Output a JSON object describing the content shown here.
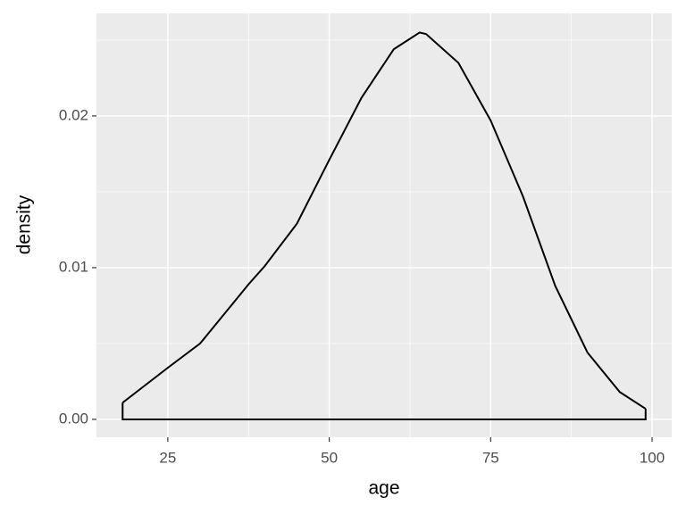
{
  "chart_data": {
    "type": "density",
    "x_label": "age",
    "y_label": "density",
    "x": [
      18,
      25,
      30,
      37.5,
      40,
      45,
      50,
      55,
      60,
      64,
      65,
      70,
      75,
      80,
      85,
      90,
      95,
      99
    ],
    "values": [
      0.0011,
      0.0034,
      0.005,
      0.0089,
      0.0101,
      0.0129,
      0.0171,
      0.0212,
      0.0244,
      0.0255,
      0.0254,
      0.0235,
      0.0197,
      0.0147,
      0.0088,
      0.0044,
      0.0018,
      0.0007
    ],
    "color": "#000000",
    "xlim": [
      13.95,
      103.04
    ],
    "ylim": [
      -0.00118,
      0.02676
    ],
    "xticks": [
      25,
      50,
      75,
      100
    ],
    "yticks": [
      {
        "value": 0,
        "label": "0.00"
      },
      {
        "value": 0.01,
        "label": "0.01"
      },
      {
        "value": 0.02,
        "label": "0.02"
      }
    ],
    "x_minor_ticks": [
      37.5,
      62.5,
      87.5
    ],
    "y_minor_ticks": [
      0.005,
      0.015,
      0.025
    ],
    "grid": true
  }
}
